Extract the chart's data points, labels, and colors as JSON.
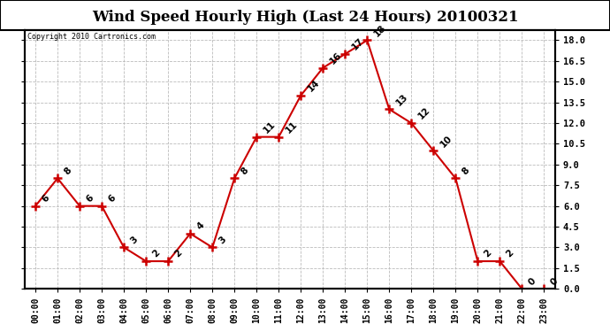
{
  "title": "Wind Speed Hourly High (Last 24 Hours) 20100321",
  "copyright": "Copyright 2010 Cartronics.com",
  "hours": [
    "00:00",
    "01:00",
    "02:00",
    "03:00",
    "04:00",
    "05:00",
    "06:00",
    "07:00",
    "08:00",
    "09:00",
    "10:00",
    "11:00",
    "12:00",
    "13:00",
    "14:00",
    "15:00",
    "16:00",
    "17:00",
    "18:00",
    "19:00",
    "20:00",
    "21:00",
    "22:00",
    "23:00"
  ],
  "values": [
    6,
    8,
    6,
    6,
    3,
    2,
    2,
    4,
    3,
    8,
    11,
    11,
    14,
    16,
    17,
    18,
    13,
    12,
    10,
    8,
    2,
    2,
    0,
    0
  ],
  "line_color": "#cc0000",
  "marker": "+",
  "marker_size": 7,
  "marker_color": "#cc0000",
  "grid_color": "#bbbbbb",
  "background_color": "#ffffff",
  "ylim_min": 0,
  "ylim_max": 18.75,
  "yticks": [
    0.0,
    1.5,
    3.0,
    4.5,
    6.0,
    7.5,
    9.0,
    10.5,
    12.0,
    13.5,
    15.0,
    16.5,
    18.0
  ],
  "title_fontsize": 12,
  "label_fontsize": 7,
  "annotation_fontsize": 7.5,
  "line_width": 1.5
}
